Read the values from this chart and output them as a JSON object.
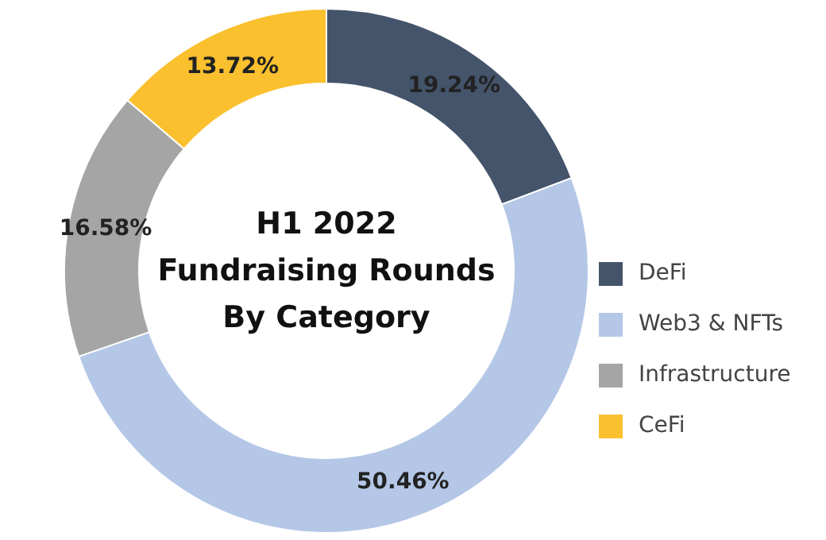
{
  "chart_data": {
    "type": "donut",
    "title": "H1 2022\nFundraising Rounds\nBy Category",
    "categories": [
      "DeFi",
      "Web3 & NFTs",
      "Infrastructure",
      "CeFi"
    ],
    "values": [
      19.24,
      50.46,
      16.58,
      13.72
    ],
    "colors": [
      "#44546a",
      "#b4c7e7",
      "#a5a5a5",
      "#fbc02d"
    ],
    "value_labels": [
      "19.24%",
      "50.46%",
      "16.58%",
      "13.72%"
    ],
    "legend": "right"
  }
}
